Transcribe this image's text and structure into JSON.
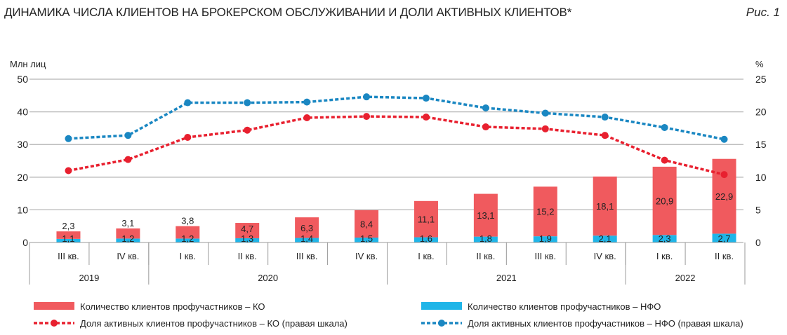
{
  "header": {
    "title": "ДИНАМИКА ЧИСЛА КЛИЕНТОВ НА БРОКЕРСКОМ ОБСЛУЖИВАНИИ И ДОЛИ АКТИВНЫХ КЛИЕНТОВ*",
    "figure": "Рис. 1"
  },
  "chart_data": {
    "type": "bar",
    "stacked": true,
    "ylabel": "Млн лиц",
    "y2label": "%",
    "ylim": [
      0,
      50
    ],
    "y2lim": [
      0,
      25
    ],
    "yticks": [
      "0",
      "10",
      "20",
      "30",
      "40",
      "50"
    ],
    "y2ticks": [
      "0",
      "5",
      "10",
      "15",
      "20",
      "25"
    ],
    "grid": true,
    "legend_position": "bottom",
    "categories": [
      "III кв.",
      "IV кв.",
      "I кв.",
      "II кв.",
      "III кв.",
      "IV кв.",
      "I кв.",
      "II кв.",
      "III кв.",
      "IV кв.",
      "I кв.",
      "II кв."
    ],
    "years": [
      {
        "label": "2019",
        "span": 2
      },
      {
        "label": "2020",
        "span": 4
      },
      {
        "label": "2021",
        "span": 4
      },
      {
        "label": "2022",
        "span": 2
      }
    ],
    "colors": {
      "ko": "#f05a5e",
      "nfo": "#1fb5e8",
      "ko_line": "#e8202f",
      "nfo_line": "#1a87c2"
    },
    "series": [
      {
        "name": "Количество клиентов профучастников – НФО",
        "kind": "bar",
        "axis": "left",
        "values": [
          1.1,
          1.2,
          1.2,
          1.3,
          1.4,
          1.5,
          1.6,
          1.8,
          1.9,
          2.1,
          2.3,
          2.7
        ],
        "labels": [
          "1,1",
          "1,2",
          "1,2",
          "1,3",
          "1,4",
          "1,5",
          "1,6",
          "1,8",
          "1,9",
          "2,1",
          "2,3",
          "2,7"
        ]
      },
      {
        "name": "Количество клиентов профучастников – КО",
        "kind": "bar",
        "axis": "left",
        "values": [
          2.3,
          3.1,
          3.8,
          4.7,
          6.3,
          8.4,
          11.1,
          13.1,
          15.2,
          18.1,
          20.9,
          22.9
        ],
        "labels": [
          "2,3",
          "3,1",
          "3,8",
          "4,7",
          "6,3",
          "8,4",
          "11,1",
          "13,1",
          "15,2",
          "18,1",
          "20,9",
          "22,9"
        ]
      },
      {
        "name": "Доля активных клиентов профучастников – КО (правая шкала)",
        "kind": "line",
        "axis": "right",
        "values": [
          11.0,
          12.7,
          16.1,
          17.2,
          19.1,
          19.3,
          19.2,
          17.7,
          17.4,
          16.4,
          12.6,
          10.4
        ]
      },
      {
        "name": "Доля активных клиентов профучастников – НФО (правая шкала)",
        "kind": "line",
        "axis": "right",
        "values": [
          15.9,
          16.4,
          21.4,
          21.4,
          21.5,
          22.3,
          22.1,
          20.6,
          19.8,
          19.2,
          17.6,
          15.8
        ]
      }
    ]
  }
}
